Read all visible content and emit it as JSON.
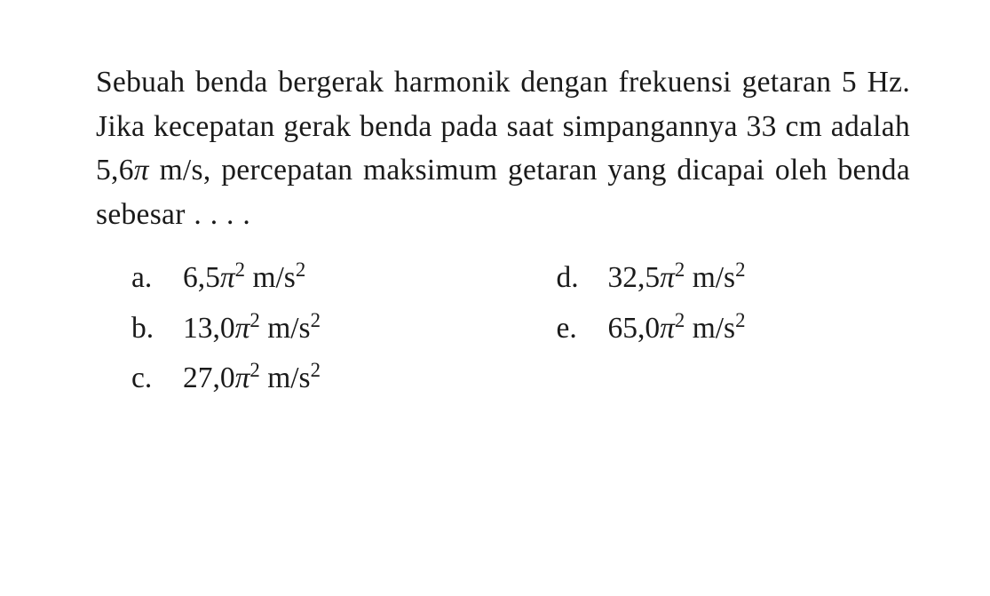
{
  "question": {
    "text": "Sebuah benda bergerak harmonik dengan frekuensi getaran 5 Hz. Jika kecepatan gerak benda pada saat simpangannya 33 cm adalah 5,6π m/s, percepatan maksimum getaran yang dicapai oleh benda sebesar . . . .",
    "fontsize": 33.5,
    "color": "#1a1a1a",
    "font_family": "Times New Roman"
  },
  "options": [
    {
      "letter": "a.",
      "coeff": "6,5",
      "exp": "2",
      "unit_base": "m/s",
      "unit_exp": "2"
    },
    {
      "letter": "b.",
      "coeff": "13,0",
      "exp": "2",
      "unit_base": "m/s",
      "unit_exp": "2"
    },
    {
      "letter": "c.",
      "coeff": "27,0",
      "exp": "2",
      "unit_base": "m/s",
      "unit_exp": "2"
    },
    {
      "letter": "d.",
      "coeff": "32,5",
      "exp": "2",
      "unit_base": "m/s",
      "unit_exp": "2"
    },
    {
      "letter": "e.",
      "coeff": "65,0",
      "exp": "2",
      "unit_base": "m/s",
      "unit_exp": "2"
    }
  ],
  "layout": {
    "left_column_order": [
      0,
      1,
      2
    ],
    "right_column_order": [
      3,
      4
    ],
    "background_color": "#ffffff"
  },
  "pi_glyph": "π"
}
